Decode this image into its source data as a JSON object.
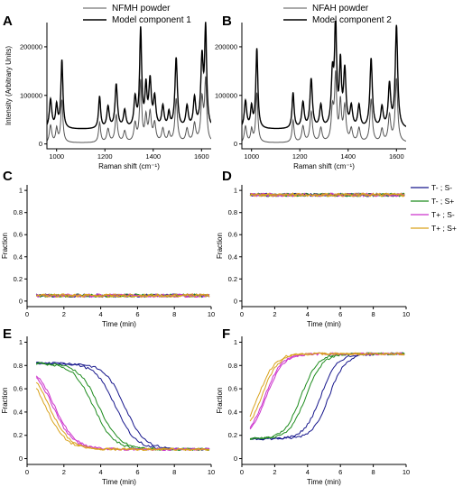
{
  "colors": {
    "blue": "#16168c",
    "green": "#1e8c1e",
    "pink": "#cc33cc",
    "gold": "#d9a21b",
    "black": "#000000",
    "gray": "#555555"
  },
  "chart_data": [
    {
      "id": "A",
      "type": "line",
      "panel_label": "A",
      "legend": [
        "NFMH powder",
        "Model component 1"
      ],
      "xlabel": "Raman shift (cm⁻¹)",
      "ylabel": "Intensity (Arbitrary Units)",
      "xlim": [
        960,
        1640
      ],
      "ylim": [
        -10000,
        250000
      ],
      "xticks": [
        1000,
        1200,
        1400,
        1600
      ],
      "yticks": [
        0,
        100000,
        200000
      ],
      "offset_series": 30000,
      "peaks": [
        [
          975,
          6,
          0.3
        ],
        [
          1000,
          5,
          0.23
        ],
        [
          1022,
          5,
          0.7
        ],
        [
          1178,
          5,
          0.33
        ],
        [
          1213,
          6,
          0.22
        ],
        [
          1247,
          6,
          0.45
        ],
        [
          1282,
          6,
          0.18
        ],
        [
          1325,
          6,
          0.3
        ],
        [
          1348,
          5,
          1.0
        ],
        [
          1370,
          5,
          0.4
        ],
        [
          1387,
          6,
          0.47
        ],
        [
          1406,
          6,
          0.3
        ],
        [
          1440,
          6,
          0.22
        ],
        [
          1465,
          5,
          0.15
        ],
        [
          1495,
          6,
          0.72
        ],
        [
          1540,
          6,
          0.22
        ],
        [
          1571,
          6,
          0.3
        ],
        [
          1602,
          6,
          0.7
        ],
        [
          1617,
          5,
          1.0
        ]
      ],
      "peak_scale": 200000
    },
    {
      "id": "B",
      "type": "line",
      "panel_label": "B",
      "legend": [
        "NFAH powder",
        "Model component 2"
      ],
      "xlabel": "Raman shift (cm⁻¹)",
      "ylabel": "",
      "xlim": [
        960,
        1640
      ],
      "ylim": [
        -10000,
        250000
      ],
      "xticks": [
        1000,
        1200,
        1400,
        1600
      ],
      "yticks": [
        0,
        100000,
        200000
      ],
      "offset_series": 30000,
      "peaks": [
        [
          975,
          6,
          0.27
        ],
        [
          1000,
          5,
          0.2
        ],
        [
          1022,
          5,
          0.78
        ],
        [
          1172,
          5,
          0.35
        ],
        [
          1213,
          6,
          0.25
        ],
        [
          1247,
          6,
          0.48
        ],
        [
          1287,
          6,
          0.22
        ],
        [
          1335,
          6,
          0.5
        ],
        [
          1348,
          5,
          1.0
        ],
        [
          1368,
          5,
          0.6
        ],
        [
          1386,
          6,
          0.55
        ],
        [
          1413,
          6,
          0.2
        ],
        [
          1445,
          6,
          0.22
        ],
        [
          1495,
          6,
          0.68
        ],
        [
          1540,
          6,
          0.2
        ],
        [
          1571,
          6,
          0.42
        ],
        [
          1600,
          6,
          1.0
        ]
      ],
      "peak_scale": 210000
    },
    {
      "id": "C",
      "type": "line",
      "panel_label": "C",
      "xlabel": "Time (min)",
      "ylabel": "Fraction",
      "xlim": [
        0,
        10
      ],
      "ylim": [
        -0.05,
        1.05
      ],
      "xticks": [
        0,
        2,
        4,
        6,
        8,
        10
      ],
      "yticks": [
        0,
        0.2,
        0.4,
        0.6,
        0.8,
        1.0
      ],
      "kind": "flat",
      "level": 0.05,
      "noise": 0.015
    },
    {
      "id": "D",
      "type": "line",
      "panel_label": "D",
      "xlabel": "Time (min)",
      "ylabel": "Fraction",
      "xlim": [
        0,
        10
      ],
      "ylim": [
        -0.05,
        1.05
      ],
      "xticks": [
        0,
        2,
        4,
        6,
        8,
        10
      ],
      "yticks": [
        0,
        0.2,
        0.4,
        0.6,
        0.8,
        1.0
      ],
      "kind": "flat",
      "level": 0.96,
      "noise": 0.015
    },
    {
      "id": "E",
      "type": "line",
      "panel_label": "E",
      "xlabel": "Time (min)",
      "ylabel": "Fraction",
      "xlim": [
        0,
        10
      ],
      "ylim": [
        -0.05,
        1.05
      ],
      "xticks": [
        0,
        2,
        4,
        6,
        8,
        10
      ],
      "yticks": [
        0,
        0.2,
        0.4,
        0.6,
        0.8,
        1.0
      ],
      "kind": "decay",
      "start": 0.82,
      "end": 0.08
    },
    {
      "id": "F",
      "type": "line",
      "panel_label": "F",
      "xlabel": "Time (min)",
      "ylabel": "Fraction",
      "xlim": [
        0,
        10
      ],
      "ylim": [
        -0.05,
        1.05
      ],
      "xticks": [
        0,
        2,
        4,
        6,
        8,
        10
      ],
      "yticks": [
        0,
        0.2,
        0.4,
        0.6,
        0.8,
        1.0
      ],
      "kind": "rise",
      "start": 0.17,
      "end": 0.9
    }
  ],
  "conditions": [
    {
      "label": "T- ; S-",
      "color": "#16168c",
      "t50": [
        4.8,
        5.3
      ]
    },
    {
      "label": "T- ; S+",
      "color": "#1e8c1e",
      "t50": [
        3.6,
        3.9
      ]
    },
    {
      "label": "T+ ; S-",
      "color": "#cc33cc",
      "t50": [
        1.4,
        1.5
      ]
    },
    {
      "label": "T+ ; S+",
      "color": "#d9a21b",
      "t50": [
        1.0,
        1.2
      ]
    }
  ]
}
